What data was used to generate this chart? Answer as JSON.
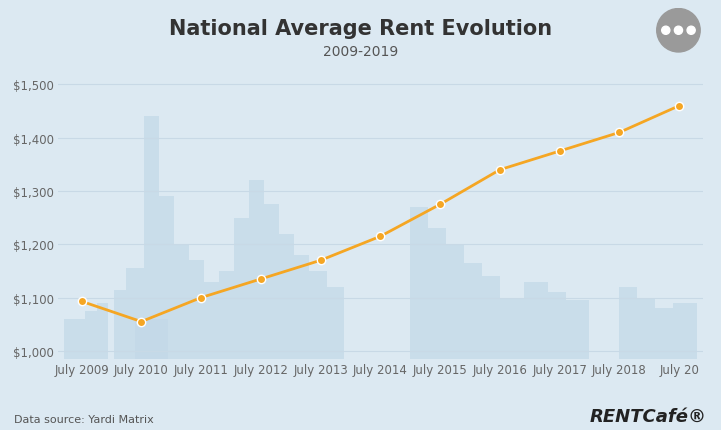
{
  "title": "National Average Rent Evolution",
  "subtitle": "2009-2019",
  "x_labels": [
    "July 2009",
    "July 2010",
    "July 2011",
    "July 2012",
    "July 2013",
    "July 2014",
    "July 2015",
    "July 2016",
    "July 2017",
    "July 2018",
    "July 20"
  ],
  "x_values": [
    0,
    1,
    2,
    3,
    4,
    5,
    6,
    7,
    8,
    9,
    10
  ],
  "y_values": [
    1093,
    1055,
    1100,
    1135,
    1170,
    1215,
    1275,
    1340,
    1375,
    1410,
    1460
  ],
  "line_color": "#F5A623",
  "marker_color": "#F5A623",
  "background_color": "#dce9f2",
  "plot_bg_color": "#dce9f2",
  "grid_color": "#c8d9e6",
  "ytick_labels": [
    "$1,000",
    "$1,100",
    "$1,200",
    "$1,300",
    "$1,400",
    "$1,500"
  ],
  "ylim": [
    985,
    1535
  ],
  "data_source": "Data source: Yardi Matrix",
  "brand": "RENTCafé®",
  "title_fontsize": 15,
  "subtitle_fontsize": 10,
  "tick_fontsize": 8.5,
  "source_fontsize": 8,
  "brand_fontsize": 13,
  "skyline_color": "#c2d8e8",
  "skyline_alpha": 0.7
}
